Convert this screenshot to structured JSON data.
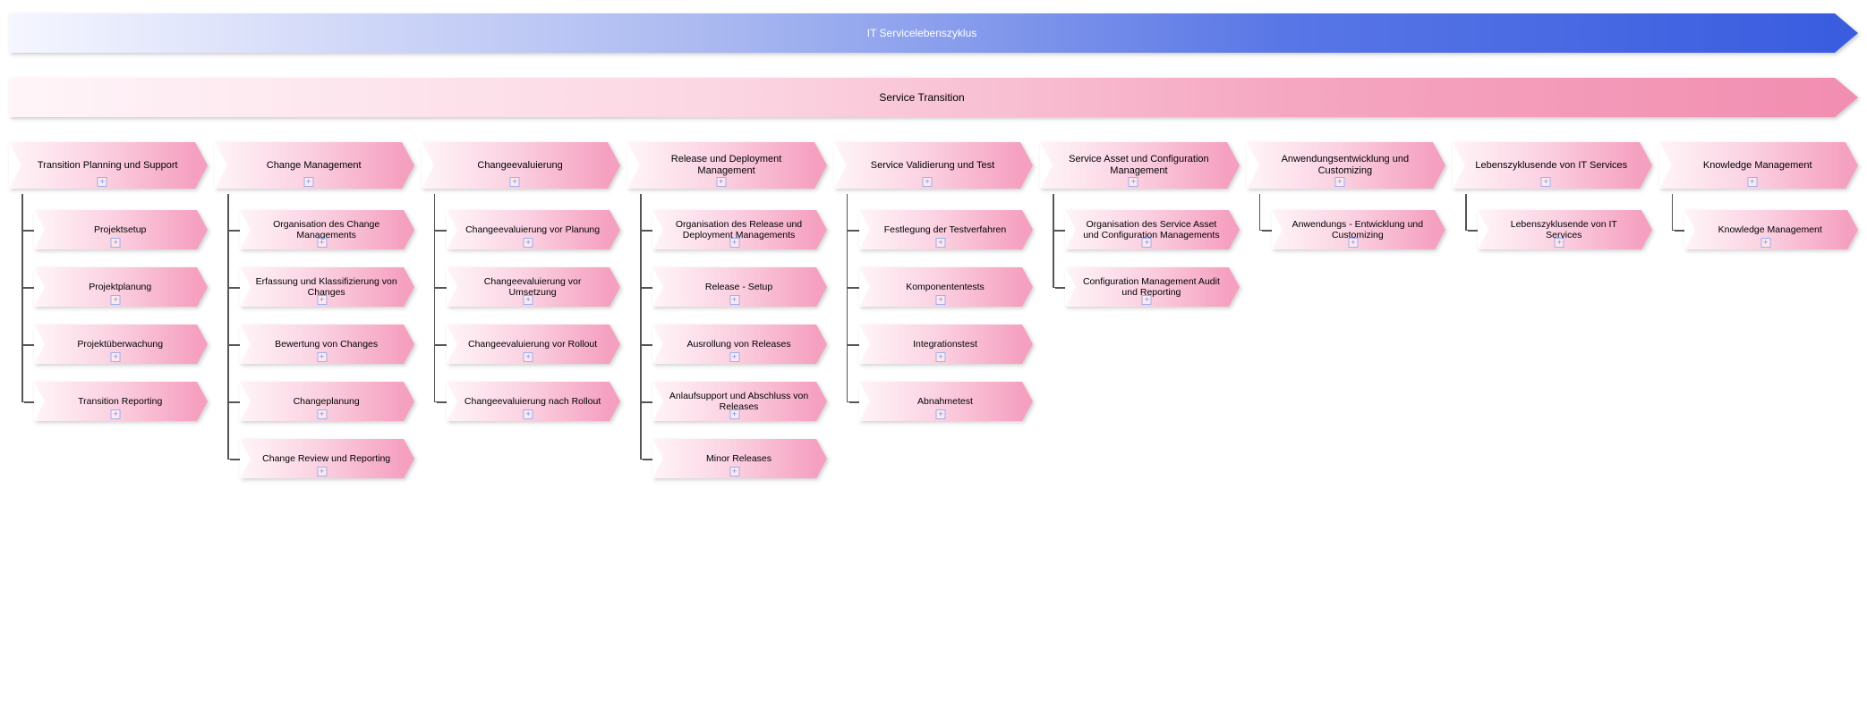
{
  "topBanner": {
    "label": "IT Servicelebenszyklus",
    "gradientFrom": "#f5f6ff",
    "gradientTo": "#3a5de0"
  },
  "subBanner": {
    "label": "Service Transition",
    "gradientFrom": "#fff5f9",
    "gradientTo": "#f28eb1"
  },
  "style": {
    "chevronGradientFrom": "#fff5f9",
    "chevronGradientMid": "#fbd0e0",
    "chevronGradientTo": "#f5a0c0",
    "treeLineColor": "#555555",
    "plusIconColor": "#6d8de6",
    "fontFamily": "Segoe UI, Arial, sans-serif",
    "headerFontSize": 11,
    "childFontSize": 10.5
  },
  "columns": [
    {
      "id": "transition-planning",
      "label": "Transition Planning und Support",
      "children": [
        "Projektsetup",
        "Projektplanung",
        "Projektüberwachung",
        "Transition Reporting"
      ]
    },
    {
      "id": "change-management",
      "label": "Change Management",
      "children": [
        "Organisation des Change Managements",
        "Erfassung und Klassifizierung von Changes",
        "Bewertung von Changes",
        "Changeplanung",
        "Change Review und Reporting"
      ]
    },
    {
      "id": "change-evaluierung",
      "label": "Changeevaluierung",
      "children": [
        "Changeevaluierung vor Planung",
        "Changeevaluierung vor Umsetzung",
        "Changeevaluierung vor Rollout",
        "Changeevaluierung nach Rollout"
      ]
    },
    {
      "id": "release-deployment",
      "label": "Release und Deployment Management",
      "children": [
        "Organisation des Release und Deployment Managements",
        "Release - Setup",
        "Ausrollung von Releases",
        "Anlaufsupport und Abschluss von Releases",
        "Minor Releases"
      ]
    },
    {
      "id": "service-validierung",
      "label": "Service Validierung und Test",
      "children": [
        "Festlegung der Testverfahren",
        "Komponententests",
        "Integrationstest",
        "Abnahmetest"
      ]
    },
    {
      "id": "service-asset",
      "label": "Service Asset und Configuration Management",
      "children": [
        "Organisation des Service Asset und Configuration Managements",
        "Configuration Management Audit und Reporting"
      ]
    },
    {
      "id": "anwendungsentwicklung",
      "label": "Anwendungsentwicklung und Customizing",
      "children": [
        "Anwendungs - Entwicklung und Customizing"
      ]
    },
    {
      "id": "lebenszyklusende",
      "label": "Lebenszyklusende von IT Services",
      "children": [
        "Lebenszyklusende von IT Services"
      ]
    },
    {
      "id": "knowledge-management",
      "label": "Knowledge Management",
      "children": [
        "Knowledge Management"
      ]
    }
  ]
}
